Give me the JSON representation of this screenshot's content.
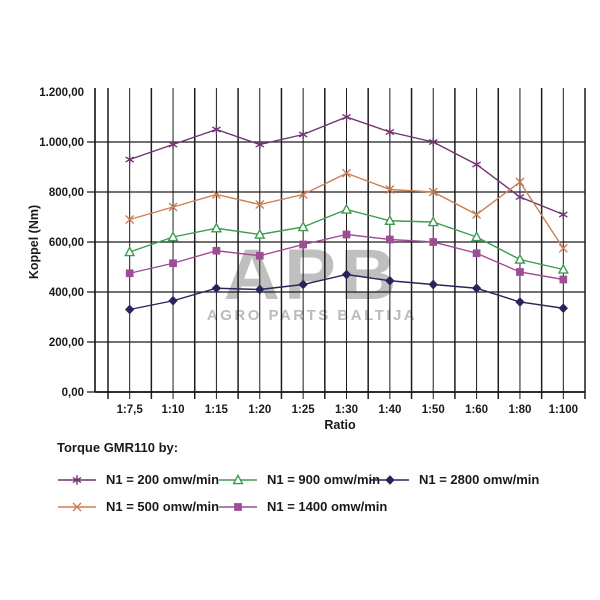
{
  "watermark": {
    "logo": "APB",
    "subtext": "AGRO PARTS BALTIJA"
  },
  "legend": {
    "title": "Torque GMR110 by:"
  },
  "colors": {
    "grid": "#1c1c1c",
    "axis": "#111111",
    "text": "#1a1a1a",
    "watermark": "#b4b4b4"
  },
  "chart_data": {
    "type": "line",
    "title": "",
    "xlabel": "Ratio",
    "ylabel": "Koppel (Nm)",
    "categories": [
      "1:7,5",
      "1:10",
      "1:15",
      "1:20",
      "1:25",
      "1:30",
      "1:40",
      "1:50",
      "1:60",
      "1:80",
      "1:100"
    ],
    "ylim": [
      0,
      1200
    ],
    "y_ticks": [
      0,
      200,
      400,
      600,
      800,
      1000,
      1200
    ],
    "y_tick_labels": [
      "0,00",
      "200,00",
      "400,00",
      "600,00",
      "800,00",
      "1.000,00",
      "1.200,00"
    ],
    "grid": "both",
    "legend_position": "below-left",
    "series": [
      {
        "name": "N1 = 200 omw/min",
        "color": "#6F3471",
        "marker": "asterisk",
        "values": [
          930,
          990,
          1050,
          990,
          1030,
          1100,
          1040,
          1000,
          910,
          780,
          710
        ]
      },
      {
        "name": "N1 = 500 omw/min",
        "color": "#CC7F55",
        "marker": "x",
        "values": [
          690,
          740,
          790,
          750,
          790,
          875,
          810,
          800,
          710,
          840,
          575
        ]
      },
      {
        "name": "N1 = 900 omw/min",
        "color": "#3E9B50",
        "marker": "triangle-open",
        "values": [
          560,
          620,
          655,
          630,
          660,
          730,
          685,
          680,
          620,
          530,
          490
        ]
      },
      {
        "name": "N1 = 1400 omw/min",
        "color": "#9E4C96",
        "marker": "square",
        "values": [
          475,
          515,
          565,
          545,
          590,
          630,
          610,
          600,
          555,
          480,
          450
        ]
      },
      {
        "name": "N1 = 2800 omw/min",
        "color": "#26265C",
        "marker": "diamond",
        "values": [
          330,
          365,
          415,
          410,
          430,
          470,
          445,
          430,
          415,
          360,
          335
        ]
      }
    ]
  }
}
